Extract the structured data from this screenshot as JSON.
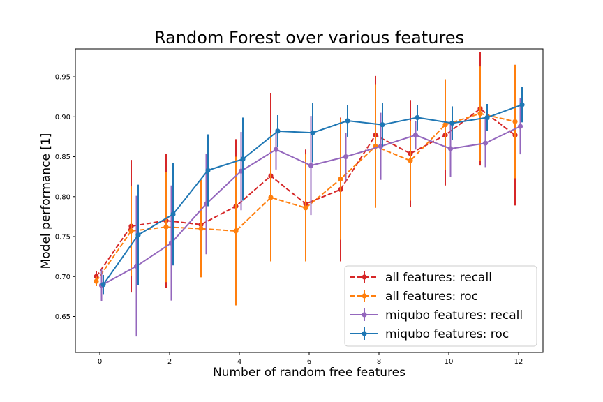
{
  "chart_data": {
    "type": "line",
    "title": "Random Forest over various features",
    "xlabel": "Number of random free features",
    "ylabel": "Model performance [1]",
    "xlim": [
      -0.7,
      12.7
    ],
    "ylim": [
      0.605,
      0.985
    ],
    "xticks": [
      0,
      2,
      4,
      6,
      8,
      10,
      12
    ],
    "yticks": [
      0.65,
      0.7,
      0.75,
      0.8,
      0.85,
      0.9,
      0.95
    ],
    "grid": false,
    "legend_position": "lower-right",
    "series": [
      {
        "name": "all features: recall",
        "color": "#d62728",
        "linestyle": "dashed",
        "x": [
          -0.1,
          0.9,
          1.9,
          2.9,
          3.9,
          4.9,
          5.9,
          6.9,
          7.9,
          8.9,
          9.9,
          10.9,
          11.9
        ],
        "y": [
          0.7,
          0.763,
          0.77,
          0.765,
          0.788,
          0.826,
          0.791,
          0.809,
          0.877,
          0.854,
          0.877,
          0.91,
          0.877
        ],
        "err": [
          0.007,
          0.083,
          0.084,
          0.046,
          0.084,
          0.104,
          0.068,
          0.09,
          0.074,
          0.067,
          0.063,
          0.071,
          0.088
        ]
      },
      {
        "name": "all features: roc",
        "color": "#ff7f0e",
        "linestyle": "dashed",
        "x": [
          -0.1,
          0.9,
          1.9,
          2.9,
          3.9,
          4.9,
          5.9,
          6.9,
          7.9,
          8.9,
          9.9,
          10.9,
          11.9
        ],
        "y": [
          0.694,
          0.757,
          0.762,
          0.76,
          0.757,
          0.799,
          0.786,
          0.822,
          0.863,
          0.845,
          0.89,
          0.904,
          0.894
        ],
        "err": [
          0.006,
          0.056,
          0.069,
          0.061,
          0.093,
          0.08,
          0.067,
          0.076,
          0.077,
          0.05,
          0.057,
          0.059,
          0.071
        ]
      },
      {
        "name": "miqubo features: recall",
        "color": "#9467bd",
        "linestyle": "solid",
        "x": [
          0.05,
          1.05,
          2.05,
          3.05,
          4.05,
          5.05,
          6.05,
          7.05,
          8.05,
          9.05,
          10.05,
          11.05,
          12.05
        ],
        "y": [
          0.689,
          0.713,
          0.742,
          0.791,
          0.832,
          0.859,
          0.839,
          0.85,
          0.863,
          0.877,
          0.86,
          0.867,
          0.888
        ],
        "err": [
          0.02,
          0.088,
          0.072,
          0.063,
          0.049,
          0.025,
          0.062,
          0.03,
          0.042,
          0.018,
          0.035,
          0.03,
          0.035
        ]
      },
      {
        "name": "miqubo features: roc",
        "color": "#1f77b4",
        "linestyle": "solid",
        "x": [
          0.1,
          1.1,
          2.1,
          3.1,
          4.1,
          5.1,
          6.1,
          7.1,
          8.1,
          9.1,
          10.1,
          11.1,
          12.1
        ],
        "y": [
          0.69,
          0.752,
          0.778,
          0.833,
          0.847,
          0.882,
          0.88,
          0.895,
          0.89,
          0.899,
          0.892,
          0.899,
          0.915
        ],
        "err": [
          0.012,
          0.063,
          0.064,
          0.045,
          0.052,
          0.02,
          0.037,
          0.02,
          0.027,
          0.016,
          0.021,
          0.017,
          0.022
        ]
      }
    ]
  }
}
